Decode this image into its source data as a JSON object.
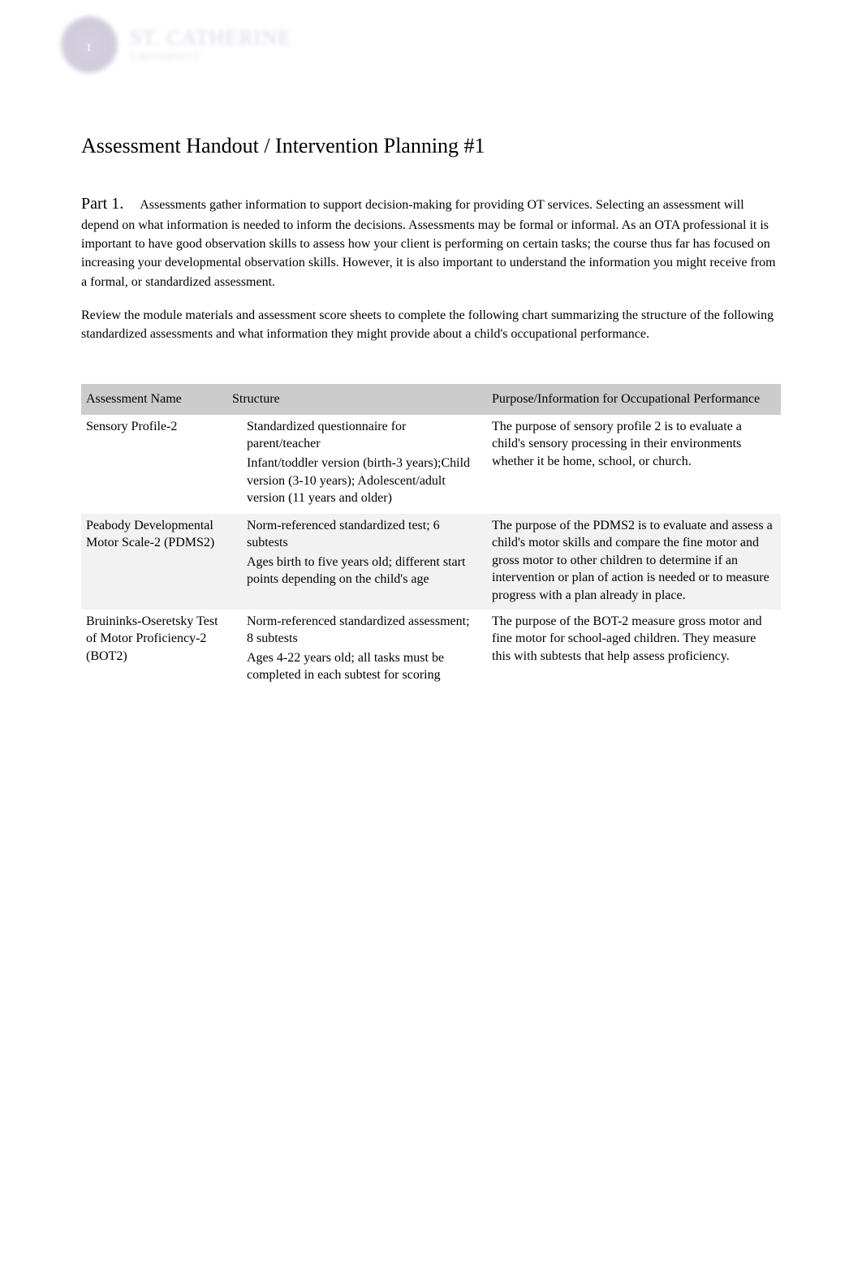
{
  "page_number": "1",
  "watermark": {
    "main": "ST. CATHERINE",
    "sub": "UNIVERSITY"
  },
  "title": "Assessment Handout / Intervention Planning #1",
  "part1": {
    "label": "Part 1.",
    "text": "Assessments gather information to support decision-making for providing OT services.  Selecting an assessment will depend on what  information  is needed to inform the decisions.   Assessments may be formal or informal.  As an OTA professional it is important to have good observation skills to assess how your client is performing on certain tasks; the course thus far has focused on increasing your developmental observation skills.  However, it is also important to understand the information you might receive from a formal, or standardized assessment."
  },
  "review_para": "Review the module materials and assessment score sheets to complete the following chart summarizing     the structure of the following standardized assessments and what information they might provide about a child's occupational performance.",
  "table": {
    "headers": {
      "name": "Assessment Name",
      "structure": "Structure",
      "purpose": "Purpose/Information for Occupational Performance"
    },
    "rows": [
      {
        "name": "Sensory Profile-2",
        "structure": [
          "Standardized questionnaire for parent/teacher",
          "Infant/toddler version (birth-3 years);Child version (3-10 years); Adolescent/adult version (11 years and older)"
        ],
        "purpose": "The purpose of sensory profile 2 is to evaluate a child's sensory processing in their environments whether it be home, school, or church."
      },
      {
        "name": "Peabody Developmental Motor Scale-2 (PDMS2)",
        "structure": [
          "Norm-referenced standardized test; 6 subtests",
          "Ages birth to five years old; different start points depending on the child's age"
        ],
        "purpose": "The purpose of the PDMS2 is to evaluate and assess a child's motor skills and compare the fine motor and gross motor to other children to determine if an intervention or plan of action is needed or to measure progress with a plan already in place."
      },
      {
        "name": "Bruininks-Oseretsky Test of Motor Proficiency-2 (BOT2)",
        "structure": [
          "Norm-referenced standardized assessment; 8 subtests",
          "Ages 4-22 years old; all tasks must be completed in each subtest for scoring"
        ],
        "purpose": "The purpose of the BOT-2 measure gross motor and fine motor for school-aged children. They measure this with subtests that help assess proficiency."
      }
    ]
  },
  "colors": {
    "header_bg": "#cccccc",
    "row_alt_bg": "#f2f2f2",
    "text": "#000000",
    "watermark_purple": "#8b7aa8"
  }
}
